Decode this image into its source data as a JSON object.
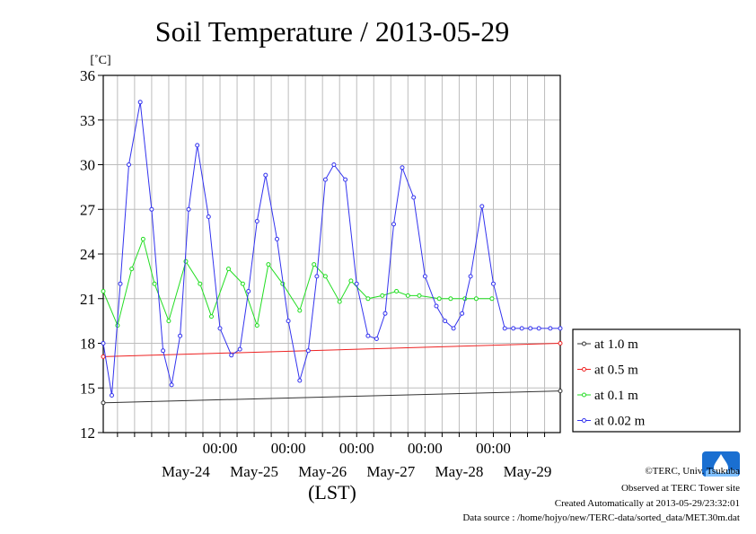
{
  "chart_data": {
    "type": "line",
    "title": "Soil Temperature / 2013-05-29",
    "unit_label": "[˚C]",
    "xlabel": "(LST)",
    "x_range": [
      "2013-05-23 07:00",
      "2013-05-29 23:30"
    ],
    "ylim": [
      12,
      36
    ],
    "y_ticks": [
      12,
      15,
      18,
      21,
      24,
      27,
      30,
      33,
      36
    ],
    "time_ticks": [
      "00:00",
      "00:00",
      "00:00",
      "00:00",
      "00:00"
    ],
    "date_labels": [
      "May-24",
      "May-25",
      "May-26",
      "May-27",
      "May-28",
      "May-29"
    ],
    "grid": true,
    "legend_position": "right",
    "series": [
      {
        "name": "at 1.0 m",
        "color": "#333333",
        "x": [
          "2013-05-23 07:00",
          "2013-05-29 23:30"
        ],
        "y": [
          14.0,
          14.8
        ]
      },
      {
        "name": "at 0.5 m",
        "color": "#ee2222",
        "x": [
          "2013-05-23 07:00",
          "2013-05-29 23:30"
        ],
        "y": [
          17.1,
          18.0
        ]
      },
      {
        "name": "at 0.1 m",
        "color": "#22dd22",
        "x": [
          "2013-05-23 07:00",
          "2013-05-23 12:00",
          "2013-05-23 17:00",
          "2013-05-23 21:00",
          "2013-05-24 01:00",
          "2013-05-24 06:00",
          "2013-05-24 12:00",
          "2013-05-24 17:00",
          "2013-05-24 21:00",
          "2013-05-25 03:00",
          "2013-05-25 08:00",
          "2013-05-25 13:00",
          "2013-05-25 17:00",
          "2013-05-25 22:00",
          "2013-05-26 04:00",
          "2013-05-26 09:00",
          "2013-05-26 13:00",
          "2013-05-26 18:00",
          "2013-05-26 22:00",
          "2013-05-27 04:00",
          "2013-05-27 09:00",
          "2013-05-27 14:00",
          "2013-05-27 18:00",
          "2013-05-27 22:00",
          "2013-05-28 05:00",
          "2013-05-28 09:00",
          "2013-05-28 14:00",
          "2013-05-28 18:00",
          "2013-05-28 23:30"
        ],
        "y": [
          21.5,
          19.2,
          23.0,
          25.0,
          22.0,
          19.5,
          23.5,
          22.0,
          19.8,
          23.0,
          22.0,
          19.2,
          23.3,
          22.0,
          20.2,
          23.3,
          22.5,
          20.8,
          22.2,
          21.0,
          21.2,
          21.5,
          21.2,
          21.2,
          21.0,
          21.0,
          21.0,
          21.0,
          21.0
        ]
      },
      {
        "name": "at 0.02 m",
        "color": "#3333ee",
        "x": [
          "2013-05-23 07:00",
          "2013-05-23 10:00",
          "2013-05-23 13:00",
          "2013-05-23 16:00",
          "2013-05-23 20:00",
          "2013-05-24 00:00",
          "2013-05-24 04:00",
          "2013-05-24 07:00",
          "2013-05-24 10:00",
          "2013-05-24 13:00",
          "2013-05-24 16:00",
          "2013-05-24 20:00",
          "2013-05-25 00:00",
          "2013-05-25 04:00",
          "2013-05-25 07:00",
          "2013-05-25 10:00",
          "2013-05-25 13:00",
          "2013-05-25 16:00",
          "2013-05-25 20:00",
          "2013-05-26 00:00",
          "2013-05-26 04:00",
          "2013-05-26 07:00",
          "2013-05-26 10:00",
          "2013-05-26 13:00",
          "2013-05-26 16:00",
          "2013-05-26 20:00",
          "2013-05-27 00:00",
          "2013-05-27 04:00",
          "2013-05-27 07:00",
          "2013-05-27 10:00",
          "2013-05-27 13:00",
          "2013-05-27 16:00",
          "2013-05-27 20:00",
          "2013-05-28 00:00",
          "2013-05-28 04:00",
          "2013-05-28 07:00",
          "2013-05-28 10:00",
          "2013-05-28 13:00",
          "2013-05-28 16:00",
          "2013-05-28 20:00",
          "2013-05-29 00:00",
          "2013-05-29 04:00",
          "2013-05-29 07:00",
          "2013-05-29 10:00",
          "2013-05-29 13:00",
          "2013-05-29 16:00",
          "2013-05-29 20:00",
          "2013-05-29 23:30"
        ],
        "y": [
          18.0,
          14.5,
          22.0,
          30.0,
          34.2,
          27.0,
          17.5,
          15.2,
          18.5,
          27.0,
          31.3,
          26.5,
          19.0,
          17.2,
          17.6,
          21.5,
          26.2,
          29.3,
          25.0,
          19.5,
          15.5,
          17.5,
          22.5,
          29.0,
          30.0,
          29.0,
          22.0,
          18.5,
          18.3,
          20.0,
          26.0,
          29.8,
          27.8,
          22.5,
          20.5,
          19.5,
          19.0,
          20.0,
          22.5,
          27.2,
          22.0,
          19.0,
          19.0,
          19.0,
          19.0,
          19.0,
          19.0,
          19.0
        ]
      }
    ]
  },
  "footer": {
    "copyright": "©TERC, Univ. Tsukuba",
    "observed": "Observed at TERC Tower site",
    "created": "Created Automatically at 2013-05-29/23:32:01",
    "source": "Data source : /home/hojyo/new/TERC-data/sorted_data/MET.30m.dat"
  }
}
